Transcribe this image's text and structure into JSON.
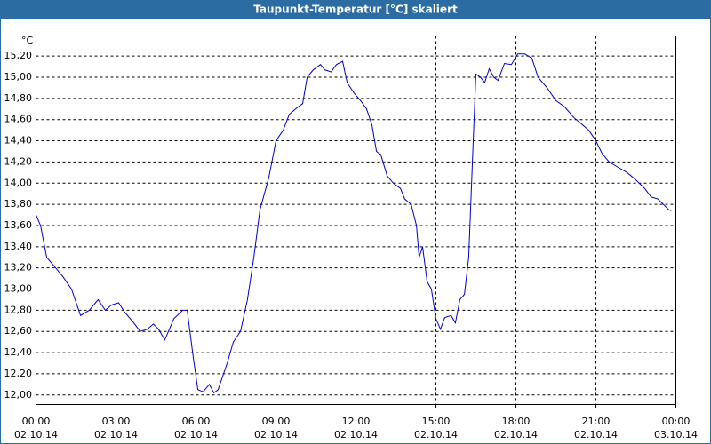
{
  "chart_data": {
    "type": "line",
    "title": "Taupunkt-Temperatur [°C] skaliert",
    "y_unit": "°C",
    "x": [
      0,
      0.17,
      0.4,
      0.67,
      1,
      1.33,
      1.67,
      2,
      2.33,
      2.6,
      2.83,
      3.1,
      3.33,
      3.67,
      3.9,
      4.17,
      4.4,
      4.6,
      4.83,
      5.17,
      5.5,
      5.67,
      5.9,
      6.07,
      6.27,
      6.5,
      6.67,
      6.83,
      7.17,
      7.4,
      7.67,
      7.93,
      8.17,
      8.4,
      8.73,
      9,
      9.27,
      9.5,
      9.83,
      10,
      10.17,
      10.4,
      10.67,
      10.83,
      11.07,
      11.27,
      11.5,
      11.67,
      11.93,
      12.17,
      12.4,
      12.6,
      12.77,
      12.93,
      13.17,
      13.4,
      13.67,
      13.83,
      14.07,
      14.27,
      14.37,
      14.5,
      14.67,
      14.83,
      15,
      15.17,
      15.33,
      15.57,
      15.73,
      15.9,
      16.07,
      16.23,
      16.4,
      16.5,
      16.67,
      16.83,
      17,
      17.17,
      17.33,
      17.57,
      17.83,
      18.07,
      18.33,
      18.6,
      18.83,
      19.17,
      19.5,
      19.83,
      20.17,
      20.5,
      20.73,
      21,
      21.23,
      21.5,
      21.83,
      22.17,
      22.5,
      22.83,
      23.07,
      23.33,
      23.53,
      23.73,
      23.83
    ],
    "series": [
      {
        "name": "Taupunkt-Temperatur",
        "color": "#0000cc",
        "values": [
          13.7,
          13.6,
          13.3,
          13.22,
          13.12,
          13.0,
          12.75,
          12.8,
          12.9,
          12.8,
          12.85,
          12.87,
          12.78,
          12.68,
          12.6,
          12.62,
          12.67,
          12.62,
          12.52,
          12.72,
          12.8,
          12.8,
          12.35,
          12.05,
          12.03,
          12.1,
          12.02,
          12.05,
          12.3,
          12.5,
          12.6,
          12.9,
          13.3,
          13.75,
          14.05,
          14.4,
          14.5,
          14.65,
          14.72,
          14.75,
          15.0,
          15.07,
          15.12,
          15.07,
          15.05,
          15.12,
          15.15,
          14.95,
          14.85,
          14.78,
          14.7,
          14.55,
          14.3,
          14.27,
          14.07,
          14.0,
          13.95,
          13.85,
          13.8,
          13.6,
          13.3,
          13.4,
          13.07,
          13.0,
          12.72,
          12.62,
          12.73,
          12.75,
          12.68,
          12.9,
          12.95,
          13.3,
          14.4,
          15.03,
          15.0,
          14.95,
          15.08,
          15.0,
          14.97,
          15.13,
          15.12,
          15.22,
          15.22,
          15.18,
          15.0,
          14.9,
          14.78,
          14.72,
          14.62,
          14.55,
          14.5,
          14.4,
          14.28,
          14.2,
          14.15,
          14.1,
          14.03,
          13.95,
          13.87,
          13.85,
          13.8,
          13.75,
          13.74
        ]
      }
    ],
    "xlim": [
      0,
      24
    ],
    "xticks": [
      {
        "value": 0,
        "label": "00:00",
        "date": "02.10.14"
      },
      {
        "value": 3,
        "label": "03:00",
        "date": "02.10.14"
      },
      {
        "value": 6,
        "label": "06:00",
        "date": "02.10.14"
      },
      {
        "value": 9,
        "label": "09:00",
        "date": "02.10.14"
      },
      {
        "value": 12,
        "label": "12:00",
        "date": "02.10.14"
      },
      {
        "value": 15,
        "label": "15:00",
        "date": "02.10.14"
      },
      {
        "value": 18,
        "label": "18:00",
        "date": "02.10.14"
      },
      {
        "value": 21,
        "label": "21:00",
        "date": "02.10.14"
      },
      {
        "value": 24,
        "label": "00:00",
        "date": "03.10.14"
      }
    ],
    "ylim": [
      11.91,
      15.39
    ],
    "yticks": [
      {
        "value": 12.0,
        "label": "12,00"
      },
      {
        "value": 12.2,
        "label": "12,20"
      },
      {
        "value": 12.4,
        "label": "12,40"
      },
      {
        "value": 12.6,
        "label": "12,60"
      },
      {
        "value": 12.8,
        "label": "12,80"
      },
      {
        "value": 13.0,
        "label": "13,00"
      },
      {
        "value": 13.2,
        "label": "13,20"
      },
      {
        "value": 13.4,
        "label": "13,40"
      },
      {
        "value": 13.6,
        "label": "13,60"
      },
      {
        "value": 13.8,
        "label": "13,80"
      },
      {
        "value": 14.0,
        "label": "14,00"
      },
      {
        "value": 14.2,
        "label": "14,20"
      },
      {
        "value": 14.4,
        "label": "14,40"
      },
      {
        "value": 14.6,
        "label": "14,60"
      },
      {
        "value": 14.8,
        "label": "14,80"
      },
      {
        "value": 15.0,
        "label": "15,00"
      },
      {
        "value": 15.2,
        "label": "15,20"
      }
    ],
    "grid": true
  }
}
